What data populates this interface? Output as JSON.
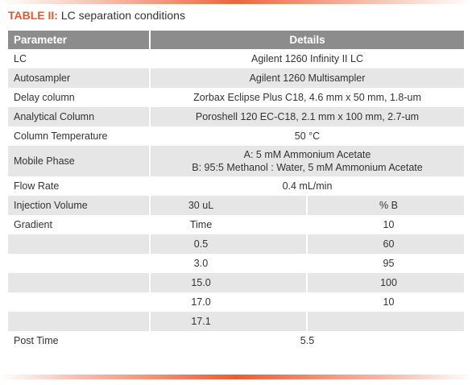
{
  "caption": {
    "label": "TABLE II:",
    "text": "LC separation conditions"
  },
  "header": {
    "parameter": "Parameter",
    "details": "Details"
  },
  "rows": [
    {
      "param": "LC",
      "value": "Agilent 1260 Infinity II LC"
    },
    {
      "param": "Autosampler",
      "value": "Agilent 1260 Multisampler"
    },
    {
      "param": "Delay column",
      "value": "Zorbax Eclipse Plus C18, 4.6 mm x 50 mm, 1.8-um"
    },
    {
      "param": "Analytical Column",
      "value": "Poroshell 120 EC-C18, 2.1 mm x 100 mm, 2.7-um"
    },
    {
      "param": "Column Temperature",
      "value": "50 °C"
    },
    {
      "param": "Mobile Phase",
      "line1": "A: 5 mM Ammonium Acetate",
      "line2": "B: 95:5 Methanol : Water, 5 mM Ammonium Acetate"
    },
    {
      "param": "Flow Rate",
      "value": "0.4 mL/min"
    },
    {
      "param": "Injection Volume",
      "value": "30 uL",
      "extra": "% B"
    },
    {
      "param": "Gradient",
      "time": "Time",
      "b": "10"
    }
  ],
  "gradient": [
    {
      "time": "0.5",
      "b": "60"
    },
    {
      "time": "3.0",
      "b": "95"
    },
    {
      "time": "15.0",
      "b": "100"
    },
    {
      "time": "17.0",
      "b": "10"
    },
    {
      "time": "17.1",
      "b": ""
    }
  ],
  "post_time": {
    "param": "Post Time",
    "value": "5.5"
  }
}
